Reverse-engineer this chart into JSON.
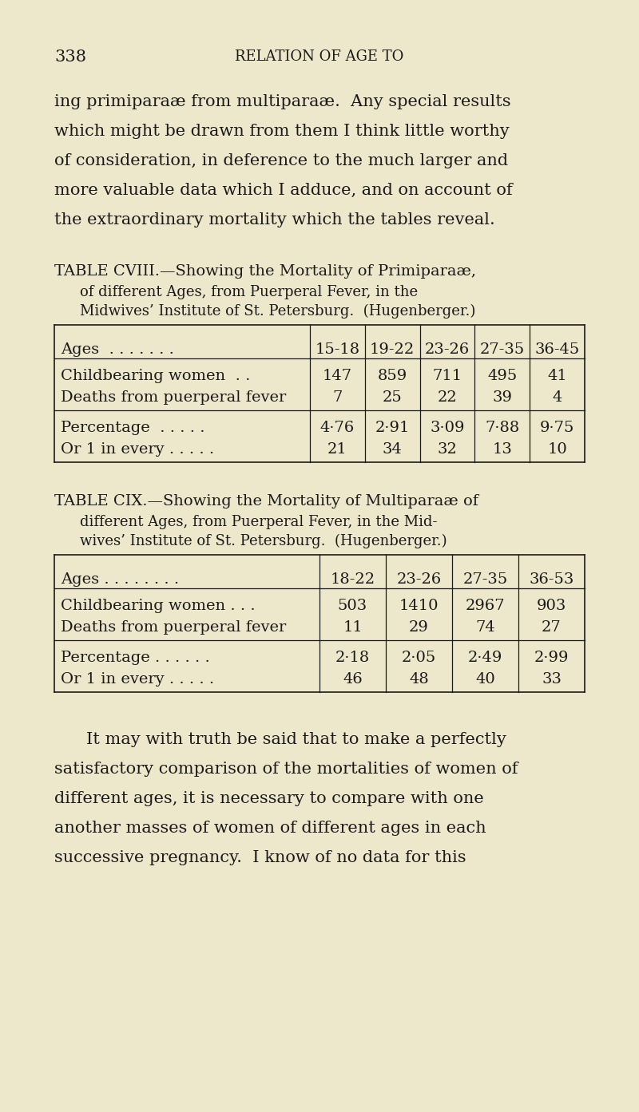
{
  "bg_color": "#ede8cc",
  "page_number": "338",
  "page_header": "RELATION OF AGE TO",
  "intro_text": [
    "ing primiparaæ from multiparaæ.  Any special results",
    "which might be drawn from them I think little worthy",
    "of consideration, in deference to the much larger and",
    "more valuable data which I adduce, and on account of",
    "the extraordinary mortality which the tables reveal."
  ],
  "table1_title_line1": "TABLE CVIII.—Showing the Mortality of Primiparaæ,",
  "table1_title_line2": "of different Ages, from Puerperal Fever, in the",
  "table1_title_line3": "Midwives’ Institute of St. Petersburg.  (Hugenberger.)",
  "table1_col_headers": [
    "15-18",
    "19-22",
    "23-26",
    "27-35",
    "36-45"
  ],
  "table1_row1_label": "Childbearing women  . .",
  "table1_row1_values": [
    "147",
    "859",
    "711",
    "495",
    "41"
  ],
  "table1_row2_label": "Deaths from puerperal fever",
  "table1_row2_values": [
    "7",
    "25",
    "22",
    "39",
    "4"
  ],
  "table1_row3_label": "Percentage  . . . . .",
  "table1_row3_values": [
    "4·76",
    "2·91",
    "3·09",
    "7·88",
    "9·75"
  ],
  "table1_row4_label": "Or 1 in every . . . . .",
  "table1_row4_values": [
    "21",
    "34",
    "32",
    "13",
    "10"
  ],
  "table2_title_line1": "TABLE CIX.—Showing the Mortality of Multiparaæ of",
  "table2_title_line2": "different Ages, from Puerperal Fever, in the Mid-",
  "table2_title_line3": "wives’ Institute of St. Petersburg.  (Hugenberger.)",
  "table2_col_headers": [
    "18-22",
    "23-26",
    "27-35",
    "36-53"
  ],
  "table2_row1_label": "Childbearing women . . .",
  "table2_row1_values": [
    "503",
    "1410",
    "2967",
    "903"
  ],
  "table2_row2_label": "Deaths from puerperal fever",
  "table2_row2_values": [
    "11",
    "29",
    "74",
    "27"
  ],
  "table2_row3_label": "Percentage . . . . . .",
  "table2_row3_values": [
    "2·18",
    "2·05",
    "2·49",
    "2·99"
  ],
  "table2_row4_label": "Or 1 in every . . . . .",
  "table2_row4_values": [
    "46",
    "48",
    "40",
    "33"
  ],
  "closing_text": [
    "It may with truth be said that to make a perfectly",
    "satisfactory comparison of the mortalities of women of",
    "different ages, it is necessary to compare with one",
    "another masses of women of different ages in each",
    "successive pregnancy.  I know of no data for this"
  ],
  "text_color": "#1a1a1a"
}
